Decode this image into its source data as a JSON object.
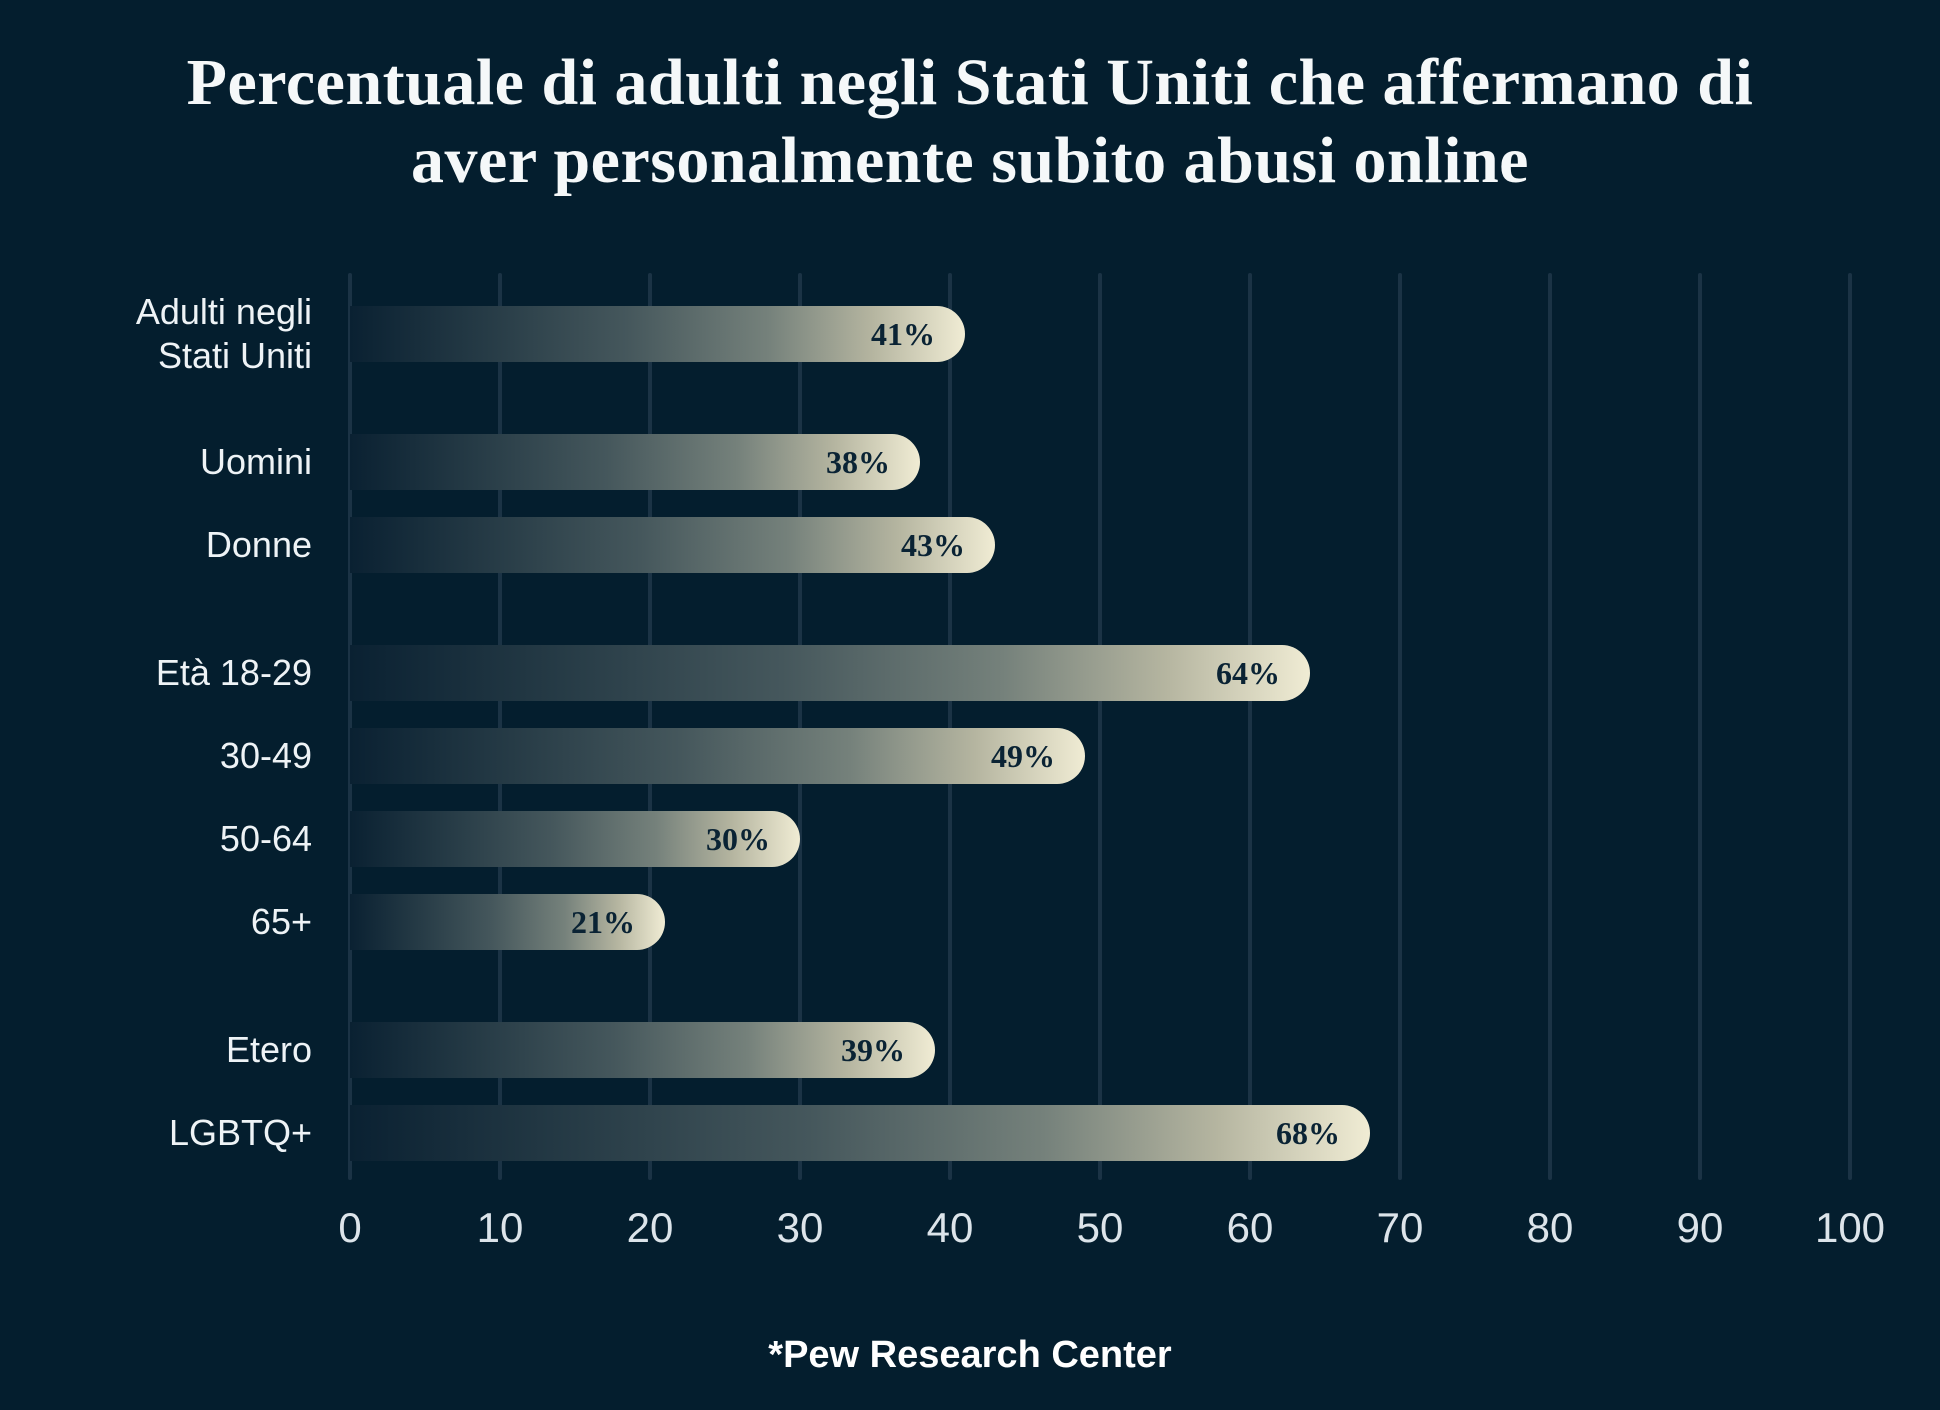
{
  "title": {
    "line1": "Percentuale di adulti negli Stati Uniti che affermano di",
    "line2": "aver personalmente subito abusi online"
  },
  "source": "*Pew Research Center",
  "chart_data": {
    "type": "bar",
    "orientation": "horizontal",
    "title": "Percentuale di adulti negli Stati Uniti che affermano di aver personalmente subito abusi online",
    "categories": [
      "Adulti negli\nStati Uniti",
      "Uomini",
      "Donne",
      "Età 18-29",
      "30-49",
      "50-64",
      "65+",
      "Etero",
      "LGBTQ+"
    ],
    "values": [
      41,
      38,
      43,
      64,
      49,
      30,
      21,
      39,
      68
    ],
    "value_suffix": "%",
    "groups": [
      0,
      1,
      1,
      2,
      2,
      2,
      2,
      3,
      3
    ],
    "xlim": [
      0,
      100
    ],
    "xticks": [
      0,
      10,
      20,
      30,
      40,
      50,
      60,
      70,
      80,
      90,
      100
    ],
    "grid": "vertical",
    "legend": "none",
    "source": "*Pew Research Center",
    "colors": {
      "background": "#041e2e",
      "gridline": "#1b3345",
      "bar_gradient_start": "#0a2132",
      "bar_gradient_end": "#f0ecd4",
      "value_text": "#0a2334",
      "label_text": "#eef3f6",
      "tick_text": "#dce4ea",
      "title_text": "#f5f8f9"
    }
  }
}
